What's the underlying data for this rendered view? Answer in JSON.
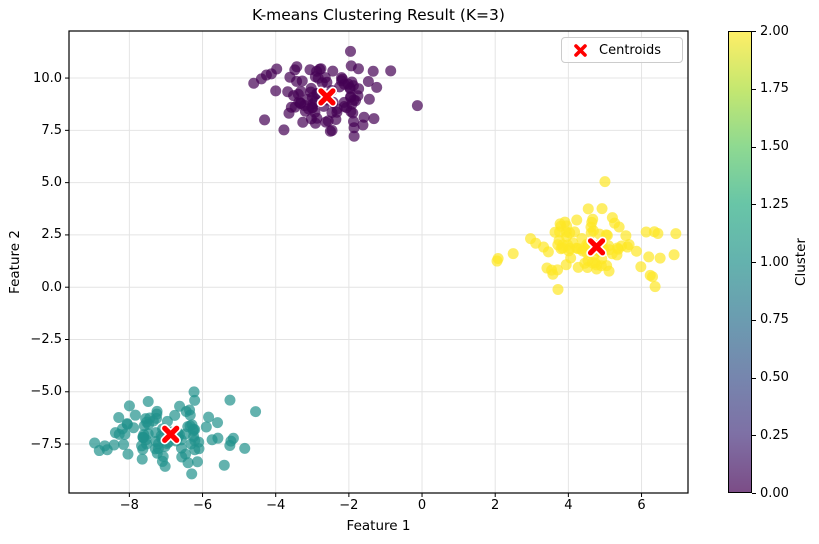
{
  "chart_data": {
    "type": "scatter",
    "title": "K-means Clustering Result (K=3)",
    "xlabel": "Feature 1",
    "ylabel": "Feature 2",
    "xlim": [
      -9.65,
      7.27
    ],
    "ylim": [
      -9.84,
      12.25
    ],
    "grid": true,
    "legend_position": "upper right",
    "colormap": "viridis",
    "point_alpha": 0.7,
    "point_radius": 5.5,
    "xticks": {
      "values": [
        -8,
        -6,
        -4,
        -2,
        0,
        2,
        4,
        6
      ],
      "labels": [
        "−8",
        "−6",
        "−4",
        "−2",
        "0",
        "2",
        "4",
        "6"
      ]
    },
    "yticks": {
      "values": [
        10,
        7.5,
        5,
        2.5,
        0,
        -2.5,
        -5,
        -7.5
      ],
      "labels": [
        "10.0",
        "7.5",
        "5.0",
        "2.5",
        "0.0",
        "−2.5",
        "−5.0",
        "−7.5"
      ]
    },
    "clusters": [
      {
        "label": 0,
        "color": "#440154",
        "center": [
          -2.65,
          9.15
        ],
        "std": [
          0.78,
          0.85
        ],
        "count": 99,
        "seed": 101,
        "extra_points": [
          [
            -4.6,
            9.75
          ]
        ]
      },
      {
        "label": 1,
        "color": "#21918c",
        "center": [
          -6.9,
          -7.0
        ],
        "std": [
          0.85,
          0.78
        ],
        "count": 97,
        "seed": 202,
        "extra_points": [
          [
            -4.55,
            -5.95
          ],
          [
            -5.25,
            -5.4
          ],
          [
            -8.95,
            -7.45
          ]
        ]
      },
      {
        "label": 2,
        "color": "#fde725",
        "center": [
          4.7,
          2.0
        ],
        "std": [
          0.95,
          0.78
        ],
        "count": 96,
        "seed": 303,
        "extra_points": [
          [
            2.05,
            1.25
          ],
          [
            5.0,
            5.05
          ],
          [
            6.35,
            2.65
          ],
          [
            6.3,
            0.5
          ]
        ]
      }
    ],
    "centroids": {
      "legend_label": "Centroids",
      "marker": "X",
      "color": "#ff0000",
      "edge_color": "#ffffff",
      "points": [
        [
          -2.6,
          9.1
        ],
        [
          -6.87,
          -7.03
        ],
        [
          4.77,
          1.93
        ]
      ]
    },
    "colorbar": {
      "label": "Cluster",
      "min": 0,
      "max": 2,
      "tick_values": [
        0,
        0.25,
        0.5,
        0.75,
        1.0,
        1.25,
        1.5,
        1.75,
        2.0
      ],
      "tick_labels": [
        "0.00",
        "0.25",
        "0.50",
        "0.75",
        "1.00",
        "1.25",
        "1.50",
        "1.75",
        "2.00"
      ],
      "gradient": [
        {
          "pos": 0.0,
          "color": "#7c4d87"
        },
        {
          "pos": 0.125,
          "color": "#7e70a5"
        },
        {
          "pos": 0.25,
          "color": "#7686ae"
        },
        {
          "pos": 0.375,
          "color": "#6b9cb0"
        },
        {
          "pos": 0.5,
          "color": "#64b2ae"
        },
        {
          "pos": 0.625,
          "color": "#68c5a7"
        },
        {
          "pos": 0.75,
          "color": "#8ed991"
        },
        {
          "pos": 0.875,
          "color": "#c4e770"
        },
        {
          "pos": 1.0,
          "color": "#feee66"
        }
      ]
    },
    "style": {
      "grid_color": "#e4e4e4",
      "spine_color": "#000000",
      "background": "#ffffff"
    }
  }
}
